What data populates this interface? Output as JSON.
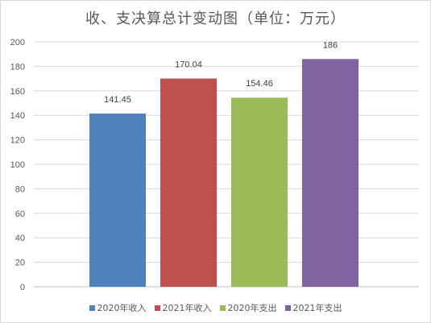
{
  "chart_data": {
    "type": "bar",
    "title": "收、支决算总计变动图（单位：万元）",
    "categories": [
      "2020年收入",
      "2021年收入",
      "2020年支出",
      "2021年支出"
    ],
    "values": [
      141.45,
      170.04,
      154.46,
      186
    ],
    "value_labels": [
      "141.45",
      "170.04",
      "154.46",
      "186"
    ],
    "colors": [
      "#4f81bd",
      "#c0504d",
      "#9bbb59",
      "#8064a2"
    ],
    "ylim": [
      0,
      200
    ],
    "yticks": [
      "0",
      "20",
      "40",
      "60",
      "80",
      "100",
      "120",
      "140",
      "160",
      "180",
      "200"
    ],
    "grid": true,
    "legend_position": "bottom"
  }
}
